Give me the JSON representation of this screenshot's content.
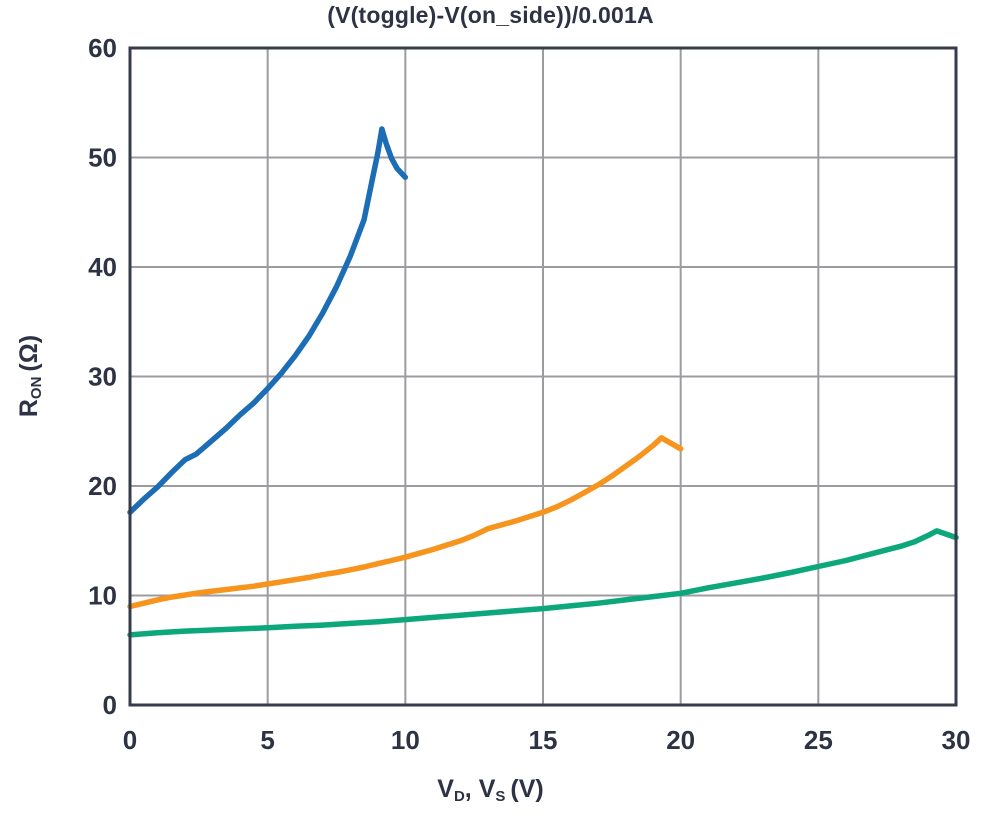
{
  "colors": {
    "text": "#2d3344",
    "grid": "#9c9ca0",
    "frame": "#363c49",
    "background": "#ffffff"
  },
  "axes": {
    "ylabel": {
      "base": "R",
      "sub": "ON",
      "unit": " (Ω)"
    },
    "xlabel": {
      "v1": "V",
      "v1_sub": "D",
      "sep": ", ",
      "v2": "V",
      "v2_sub": "S",
      "unit": " (V)"
    }
  },
  "chart_data": {
    "type": "line",
    "title": "(V(toggle)-V(on_side))/0.001A",
    "xlabel": "V_D, V_S (V)",
    "ylabel": "R_ON (Ω)",
    "xlim": [
      0,
      30
    ],
    "ylim": [
      0,
      60
    ],
    "xticks": [
      0,
      5,
      10,
      15,
      20,
      25,
      30
    ],
    "yticks": [
      0,
      10,
      20,
      30,
      40,
      50,
      60
    ],
    "grid": true,
    "legend": false,
    "series": [
      {
        "name": "blue-curve",
        "color": "#1b6db5",
        "points": [
          [
            0,
            17.6
          ],
          [
            0.5,
            18.8
          ],
          [
            1,
            19.9
          ],
          [
            1.5,
            21.2
          ],
          [
            2,
            22.4
          ],
          [
            2.4,
            22.9
          ],
          [
            3,
            24.2
          ],
          [
            3.5,
            25.3
          ],
          [
            4,
            26.5
          ],
          [
            4.5,
            27.6
          ],
          [
            5,
            28.9
          ],
          [
            5.5,
            30.3
          ],
          [
            6,
            31.9
          ],
          [
            6.5,
            33.7
          ],
          [
            7,
            35.8
          ],
          [
            7.5,
            38.2
          ],
          [
            8,
            41.0
          ],
          [
            8.5,
            44.3
          ],
          [
            8.8,
            48.0
          ],
          [
            9.0,
            50.4
          ],
          [
            9.15,
            52.6
          ],
          [
            9.3,
            51.3
          ],
          [
            9.5,
            49.9
          ],
          [
            9.7,
            49.0
          ],
          [
            10,
            48.2
          ]
        ]
      },
      {
        "name": "orange-curve",
        "color": "#f7941e",
        "points": [
          [
            0,
            9.0
          ],
          [
            0.5,
            9.3
          ],
          [
            1,
            9.6
          ],
          [
            1.5,
            9.85
          ],
          [
            2,
            10.05
          ],
          [
            2.5,
            10.25
          ],
          [
            3,
            10.4
          ],
          [
            3.5,
            10.55
          ],
          [
            4,
            10.7
          ],
          [
            4.5,
            10.85
          ],
          [
            5,
            11.05
          ],
          [
            5.5,
            11.25
          ],
          [
            6,
            11.45
          ],
          [
            6.5,
            11.65
          ],
          [
            7,
            11.9
          ],
          [
            7.5,
            12.1
          ],
          [
            8,
            12.35
          ],
          [
            8.5,
            12.6
          ],
          [
            9,
            12.9
          ],
          [
            9.5,
            13.2
          ],
          [
            10,
            13.5
          ],
          [
            10.5,
            13.85
          ],
          [
            11,
            14.2
          ],
          [
            11.5,
            14.6
          ],
          [
            12,
            15.0
          ],
          [
            12.5,
            15.5
          ],
          [
            13,
            16.1
          ],
          [
            14,
            16.8
          ],
          [
            15,
            17.6
          ],
          [
            15.5,
            18.1
          ],
          [
            16,
            18.7
          ],
          [
            16.5,
            19.4
          ],
          [
            17,
            20.1
          ],
          [
            17.5,
            20.9
          ],
          [
            18,
            21.8
          ],
          [
            18.5,
            22.7
          ],
          [
            19,
            23.7
          ],
          [
            19.3,
            24.4
          ],
          [
            20,
            23.4
          ]
        ]
      },
      {
        "name": "green-curve",
        "color": "#0ca87b",
        "points": [
          [
            0,
            6.4
          ],
          [
            1,
            6.6
          ],
          [
            2,
            6.75
          ],
          [
            3,
            6.85
          ],
          [
            4,
            6.95
          ],
          [
            5,
            7.05
          ],
          [
            6,
            7.2
          ],
          [
            7,
            7.3
          ],
          [
            8,
            7.45
          ],
          [
            9,
            7.6
          ],
          [
            10,
            7.8
          ],
          [
            11,
            8.0
          ],
          [
            12,
            8.2
          ],
          [
            13,
            8.4
          ],
          [
            14,
            8.6
          ],
          [
            15,
            8.8
          ],
          [
            16,
            9.05
          ],
          [
            17,
            9.3
          ],
          [
            18,
            9.6
          ],
          [
            19,
            9.9
          ],
          [
            20,
            10.2
          ],
          [
            21,
            10.7
          ],
          [
            22,
            11.15
          ],
          [
            23,
            11.6
          ],
          [
            24,
            12.1
          ],
          [
            25,
            12.65
          ],
          [
            26,
            13.2
          ],
          [
            27,
            13.85
          ],
          [
            28,
            14.5
          ],
          [
            28.5,
            14.9
          ],
          [
            29,
            15.5
          ],
          [
            29.3,
            15.9
          ],
          [
            30,
            15.3
          ]
        ]
      }
    ]
  }
}
